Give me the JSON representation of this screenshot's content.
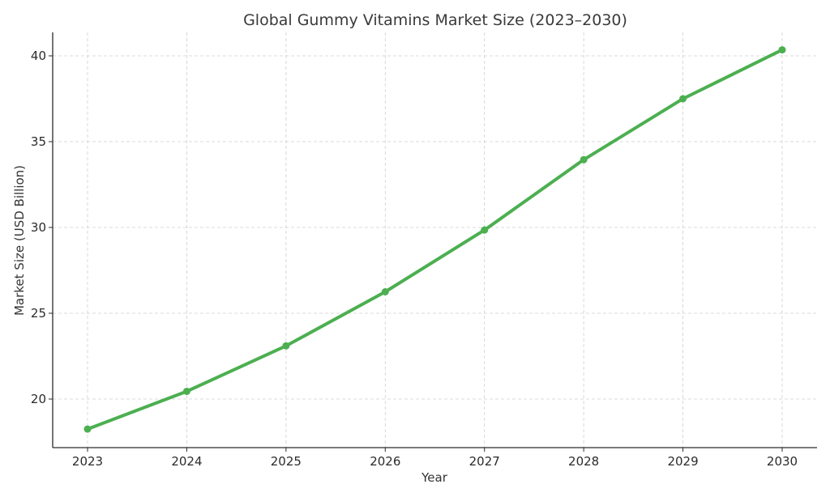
{
  "chart_data": {
    "type": "line",
    "title": "Global Gummy Vitamins Market Size (2023–2030)",
    "xlabel": "Year",
    "ylabel": "Market Size (USD Billion)",
    "categories": [
      "2023",
      "2024",
      "2025",
      "2026",
      "2027",
      "2028",
      "2029",
      "2030"
    ],
    "x": [
      2023,
      2024,
      2025,
      2026,
      2027,
      2028,
      2029,
      2030
    ],
    "series": [
      {
        "name": "Market Size",
        "values": [
          18.25,
          20.45,
          23.1,
          26.25,
          29.85,
          33.95,
          37.5,
          40.35
        ],
        "color": "#4caf50",
        "marker": "circle"
      }
    ],
    "yticks": [
      20,
      25,
      30,
      35,
      40
    ],
    "ylim": [
      17.25,
      41.4
    ],
    "xlim": [
      2022.65,
      2030.35
    ],
    "grid": true,
    "legend": null
  }
}
